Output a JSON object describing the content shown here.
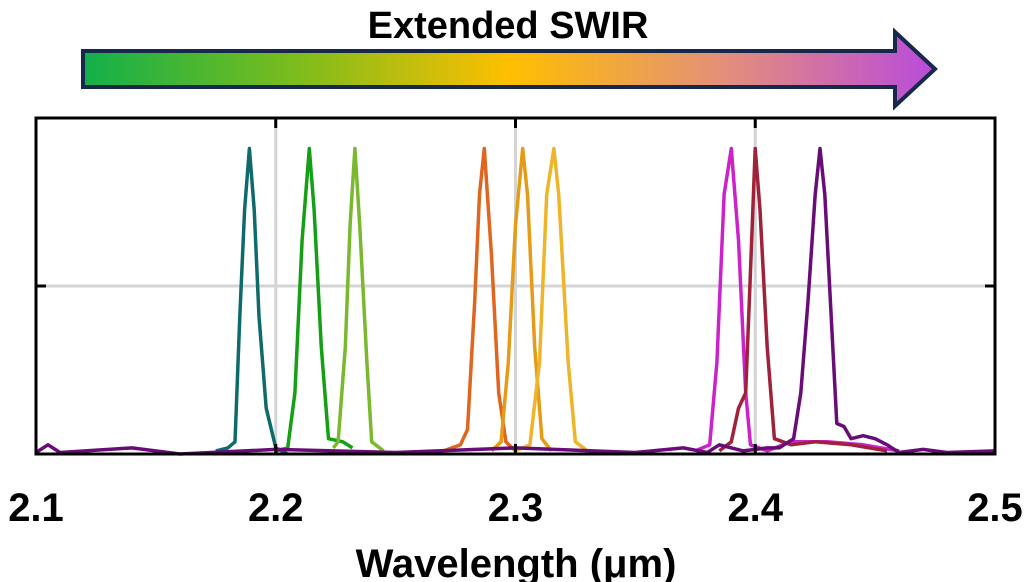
{
  "banner": {
    "label": "Extended SWIR",
    "gradient_colors": [
      "#12b04a",
      "#7cbc1c",
      "#ffbf00",
      "#e3907a",
      "#b94bdb"
    ],
    "outline_color": "#17284a"
  },
  "chart_data": {
    "type": "line",
    "title": "",
    "xlabel": "Wavelength (μm)",
    "ylabel": "",
    "xlim": [
      2.1,
      2.5
    ],
    "ylim": [
      0,
      1.1
    ],
    "x_ticks": [
      2.1,
      2.2,
      2.3,
      2.4,
      2.5
    ],
    "x_tick_labels": [
      "2.1",
      "2.2",
      "2.3",
      "2.4",
      "2.5"
    ],
    "y_ticks": [
      0.55,
      1.1
    ],
    "y_tick_labels": [],
    "grid": true,
    "legend": "none",
    "series": [
      {
        "color": "#0f6b6b",
        "points": [
          [
            2.175,
            0.01
          ],
          [
            2.18,
            0.02
          ],
          [
            2.183,
            0.04
          ],
          [
            2.185,
            0.45
          ],
          [
            2.187,
            0.8
          ],
          [
            2.189,
            1.0
          ],
          [
            2.191,
            0.8
          ],
          [
            2.193,
            0.45
          ],
          [
            2.196,
            0.15
          ],
          [
            2.2,
            0.02
          ],
          [
            2.205,
            0.0
          ]
        ]
      },
      {
        "color": "#14a014",
        "points": [
          [
            2.2,
            0.01
          ],
          [
            2.205,
            0.02
          ],
          [
            2.208,
            0.2
          ],
          [
            2.211,
            0.7
          ],
          [
            2.214,
            1.0
          ],
          [
            2.216,
            0.8
          ],
          [
            2.219,
            0.35
          ],
          [
            2.222,
            0.05
          ],
          [
            2.228,
            0.04
          ],
          [
            2.232,
            0.02
          ]
        ]
      },
      {
        "color": "#7ab82e",
        "points": [
          [
            2.224,
            0.02
          ],
          [
            2.226,
            0.04
          ],
          [
            2.229,
            0.35
          ],
          [
            2.231,
            0.75
          ],
          [
            2.233,
            1.0
          ],
          [
            2.235,
            0.75
          ],
          [
            2.238,
            0.3
          ],
          [
            2.24,
            0.04
          ],
          [
            2.245,
            0.01
          ]
        ]
      },
      {
        "color": "#e0651e",
        "points": [
          [
            2.27,
            0.01
          ],
          [
            2.277,
            0.03
          ],
          [
            2.28,
            0.08
          ],
          [
            2.283,
            0.5
          ],
          [
            2.285,
            0.85
          ],
          [
            2.287,
            1.0
          ],
          [
            2.29,
            0.65
          ],
          [
            2.293,
            0.2
          ],
          [
            2.296,
            0.04
          ],
          [
            2.3,
            0.01
          ]
        ]
      },
      {
        "color": "#e59b16",
        "points": [
          [
            2.29,
            0.01
          ],
          [
            2.294,
            0.04
          ],
          [
            2.297,
            0.3
          ],
          [
            2.3,
            0.75
          ],
          [
            2.303,
            1.0
          ],
          [
            2.305,
            0.85
          ],
          [
            2.308,
            0.35
          ],
          [
            2.311,
            0.05
          ],
          [
            2.315,
            0.01
          ]
        ]
      },
      {
        "color": "#f0b42a",
        "points": [
          [
            2.3,
            0.01
          ],
          [
            2.306,
            0.03
          ],
          [
            2.31,
            0.3
          ],
          [
            2.313,
            0.85
          ],
          [
            2.316,
            1.0
          ],
          [
            2.318,
            0.85
          ],
          [
            2.322,
            0.3
          ],
          [
            2.325,
            0.04
          ],
          [
            2.33,
            0.01
          ]
        ]
      },
      {
        "color": "#cc22cc",
        "points": [
          [
            2.375,
            0.01
          ],
          [
            2.381,
            0.03
          ],
          [
            2.384,
            0.3
          ],
          [
            2.387,
            0.85
          ],
          [
            2.39,
            1.0
          ],
          [
            2.393,
            0.7
          ],
          [
            2.396,
            0.2
          ],
          [
            2.398,
            0.03
          ],
          [
            2.405,
            0.01
          ],
          [
            2.415,
            0.04
          ],
          [
            2.43,
            0.04
          ],
          [
            2.445,
            0.03
          ],
          [
            2.46,
            0.01
          ]
        ]
      },
      {
        "color": "#a0223a",
        "points": [
          [
            2.385,
            0.01
          ],
          [
            2.39,
            0.04
          ],
          [
            2.393,
            0.15
          ],
          [
            2.396,
            0.2
          ],
          [
            2.398,
            0.6
          ],
          [
            2.4,
            1.0
          ],
          [
            2.402,
            0.8
          ],
          [
            2.405,
            0.35
          ],
          [
            2.408,
            0.05
          ],
          [
            2.415,
            0.03
          ],
          [
            2.425,
            0.04
          ],
          [
            2.44,
            0.03
          ],
          [
            2.455,
            0.01
          ]
        ]
      },
      {
        "color": "#6a0c78",
        "points": [
          [
            2.1,
            0.005
          ],
          [
            2.105,
            0.03
          ],
          [
            2.11,
            0.005
          ],
          [
            2.14,
            0.02
          ],
          [
            2.16,
            0.0
          ],
          [
            2.2,
            0.015
          ],
          [
            2.25,
            0.005
          ],
          [
            2.3,
            0.02
          ],
          [
            2.35,
            0.005
          ],
          [
            2.37,
            0.02
          ],
          [
            2.38,
            0.005
          ],
          [
            2.385,
            0.03
          ],
          [
            2.395,
            0.01
          ],
          [
            2.405,
            0.02
          ],
          [
            2.41,
            0.02
          ],
          [
            2.416,
            0.05
          ],
          [
            2.419,
            0.2
          ],
          [
            2.422,
            0.5
          ],
          [
            2.425,
            0.85
          ],
          [
            2.427,
            1.0
          ],
          [
            2.429,
            0.85
          ],
          [
            2.432,
            0.4
          ],
          [
            2.434,
            0.1
          ],
          [
            2.437,
            0.09
          ],
          [
            2.44,
            0.05
          ],
          [
            2.445,
            0.06
          ],
          [
            2.45,
            0.05
          ],
          [
            2.455,
            0.03
          ],
          [
            2.46,
            0.005
          ],
          [
            2.47,
            0.015
          ],
          [
            2.48,
            0.005
          ],
          [
            2.5,
            0.01
          ]
        ]
      }
    ]
  }
}
